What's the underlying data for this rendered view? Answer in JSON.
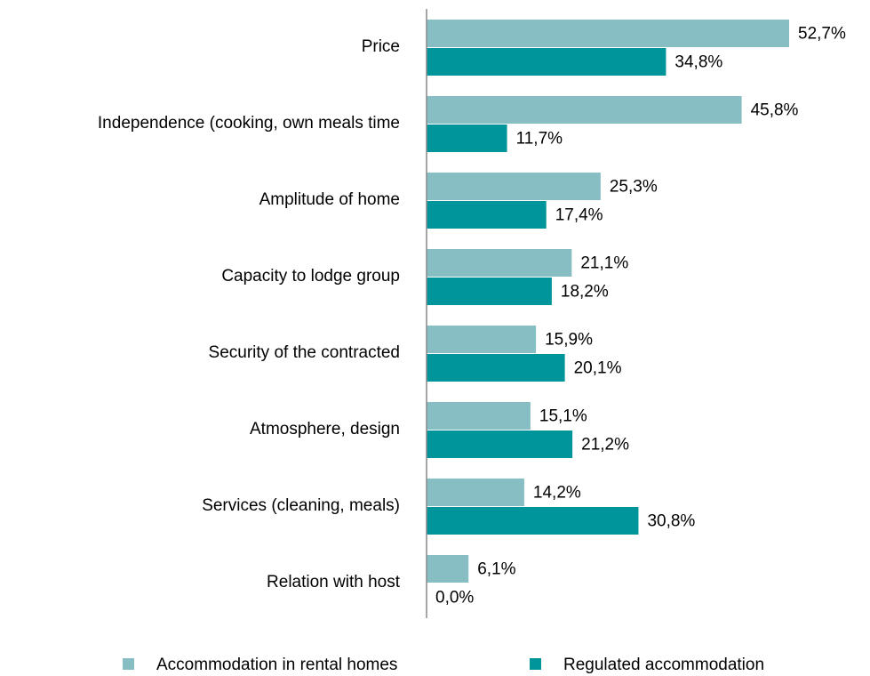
{
  "chart_data": {
    "type": "bar",
    "orientation": "horizontal",
    "categories": [
      "Price",
      "Independence (cooking, own meals time",
      "Amplitude of home",
      "Capacity to lodge group",
      "Security of the contracted",
      "Atmosphere, design",
      "Services (cleaning, meals)",
      "Relation with host"
    ],
    "series": [
      {
        "name": "Accommodation in rental homes",
        "color": "#86bec4",
        "values": [
          52.7,
          45.8,
          25.3,
          21.1,
          15.9,
          15.1,
          14.2,
          6.1
        ],
        "value_labels": [
          "52,7%",
          "45,8%",
          "25,3%",
          "21,1%",
          "15,9%",
          "15,1%",
          "14,2%",
          "6,1%"
        ]
      },
      {
        "name": "Regulated accommodation",
        "color": "#00959a",
        "values": [
          34.8,
          11.7,
          17.4,
          18.2,
          20.1,
          21.2,
          30.8,
          0.0
        ],
        "value_labels": [
          "34,8%",
          "11,7%",
          "17,4%",
          "18,2%",
          "20,1%",
          "21,2%",
          "30,8%",
          "0,0%"
        ]
      }
    ]
  }
}
